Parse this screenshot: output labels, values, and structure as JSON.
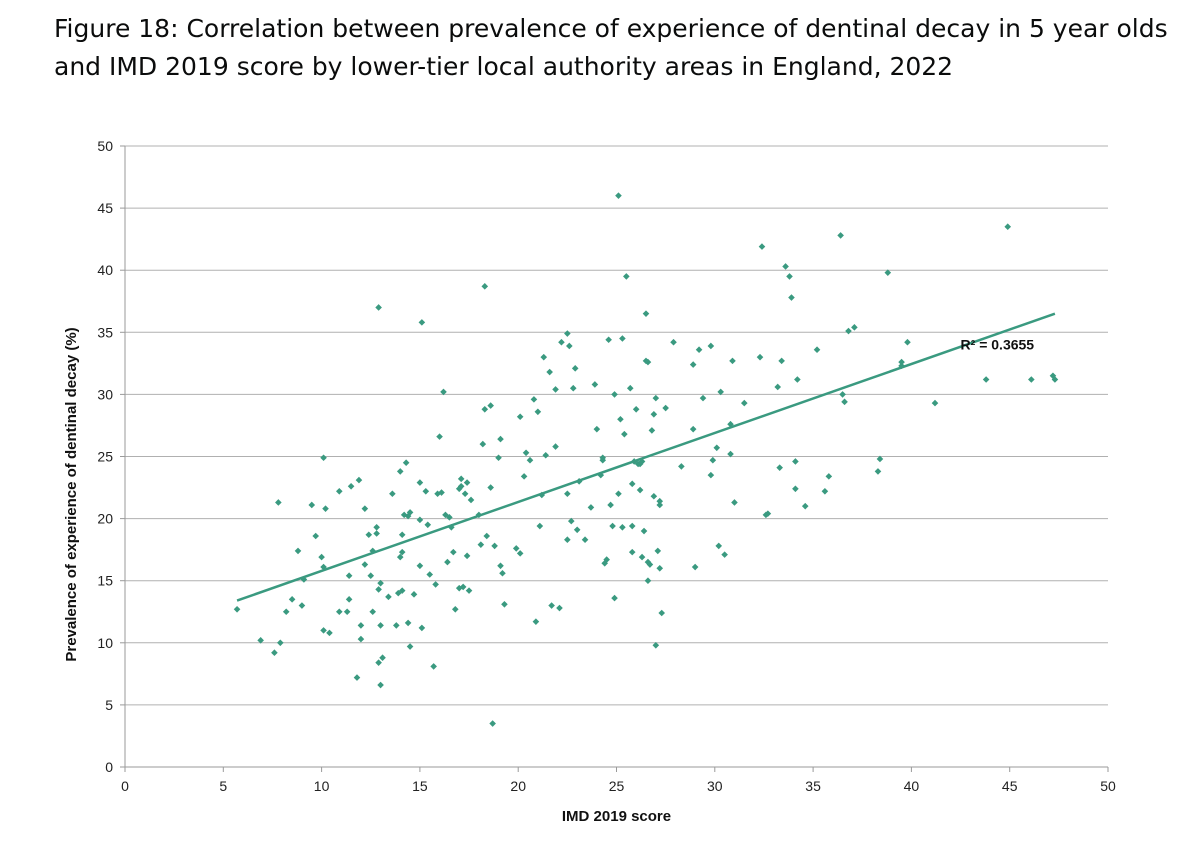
{
  "title": {
    "line1": "Figure 18: Correlation between prevalence of experience of dentinal decay in 5 year olds",
    "line2": "and IMD 2019 score by lower-tier local authority areas in England, 2022"
  },
  "colors": {
    "marker": "#3a9a80",
    "trendline": "#3a9a80",
    "grid": "#b0b0b0",
    "axis": "#9a9a9a",
    "text": "#111111"
  },
  "chart_data": {
    "type": "scatter",
    "title": "Figure 18: Correlation between prevalence of experience of dentinal decay in 5 year olds and IMD 2019 score by lower-tier local authority areas in England, 2022",
    "xlabel": "IMD 2019 score",
    "ylabel": "Prevalence of experience of dentinal decay (%)",
    "xlim": [
      0,
      50
    ],
    "ylim": [
      0,
      50
    ],
    "xticks": [
      0,
      5,
      10,
      15,
      20,
      25,
      30,
      35,
      40,
      45,
      50
    ],
    "yticks": [
      0,
      5,
      10,
      15,
      20,
      25,
      30,
      35,
      40,
      45,
      50
    ],
    "grid": "horizontal",
    "trendline": {
      "type": "linear",
      "x": [
        5.7,
        47.3
      ],
      "y": [
        13.4,
        36.5
      ],
      "label": "R² = 0.3655",
      "label_at": [
        42.5,
        33.6
      ]
    },
    "points": [
      [
        5.7,
        12.7
      ],
      [
        6.9,
        10.2
      ],
      [
        7.6,
        9.2
      ],
      [
        7.8,
        21.3
      ],
      [
        7.9,
        10.0
      ],
      [
        8.2,
        12.5
      ],
      [
        8.5,
        13.5
      ],
      [
        8.8,
        17.4
      ],
      [
        9.0,
        13.0
      ],
      [
        9.1,
        15.1
      ],
      [
        9.5,
        21.1
      ],
      [
        9.7,
        18.6
      ],
      [
        10.0,
        16.9
      ],
      [
        10.1,
        24.9
      ],
      [
        10.1,
        16.1
      ],
      [
        10.2,
        20.8
      ],
      [
        10.1,
        11.0
      ],
      [
        10.4,
        10.8
      ],
      [
        10.9,
        12.5
      ],
      [
        10.9,
        22.2
      ],
      [
        11.3,
        12.5
      ],
      [
        11.4,
        15.4
      ],
      [
        11.4,
        13.5
      ],
      [
        11.5,
        22.6
      ],
      [
        11.8,
        7.2
      ],
      [
        11.9,
        23.1
      ],
      [
        12.0,
        11.4
      ],
      [
        12.0,
        10.3
      ],
      [
        12.2,
        20.8
      ],
      [
        12.2,
        16.3
      ],
      [
        12.4,
        18.7
      ],
      [
        12.5,
        15.4
      ],
      [
        12.6,
        17.4
      ],
      [
        12.6,
        12.5
      ],
      [
        12.8,
        18.8
      ],
      [
        12.8,
        19.3
      ],
      [
        12.9,
        14.3
      ],
      [
        13.0,
        14.8
      ],
      [
        12.9,
        8.4
      ],
      [
        13.0,
        6.6
      ],
      [
        13.0,
        11.4
      ],
      [
        13.1,
        8.8
      ],
      [
        12.9,
        37.0
      ],
      [
        13.4,
        13.7
      ],
      [
        13.6,
        22.0
      ],
      [
        13.8,
        11.4
      ],
      [
        13.9,
        14.0
      ],
      [
        14.0,
        16.9
      ],
      [
        14.0,
        23.8
      ],
      [
        14.1,
        18.7
      ],
      [
        14.1,
        17.3
      ],
      [
        14.1,
        14.2
      ],
      [
        14.2,
        20.3
      ],
      [
        14.3,
        24.5
      ],
      [
        14.4,
        11.6
      ],
      [
        14.4,
        20.2
      ],
      [
        14.5,
        9.7
      ],
      [
        14.5,
        20.5
      ],
      [
        14.7,
        13.9
      ],
      [
        15.0,
        22.9
      ],
      [
        15.0,
        19.9
      ],
      [
        15.0,
        16.2
      ],
      [
        15.1,
        35.8
      ],
      [
        15.1,
        11.2
      ],
      [
        15.3,
        22.2
      ],
      [
        15.4,
        19.5
      ],
      [
        15.5,
        15.5
      ],
      [
        15.7,
        8.1
      ],
      [
        15.8,
        14.7
      ],
      [
        15.9,
        22.0
      ],
      [
        16.0,
        26.6
      ],
      [
        16.1,
        22.1
      ],
      [
        16.2,
        30.2
      ],
      [
        16.3,
        20.3
      ],
      [
        16.4,
        16.5
      ],
      [
        16.5,
        20.1
      ],
      [
        16.6,
        19.3
      ],
      [
        16.7,
        17.3
      ],
      [
        16.8,
        12.7
      ],
      [
        17.0,
        22.4
      ],
      [
        17.0,
        14.4
      ],
      [
        17.1,
        22.6
      ],
      [
        17.1,
        23.2
      ],
      [
        17.2,
        14.5
      ],
      [
        17.3,
        22.0
      ],
      [
        17.4,
        17.0
      ],
      [
        17.4,
        22.9
      ],
      [
        17.5,
        14.2
      ],
      [
        17.6,
        21.5
      ],
      [
        18.0,
        20.3
      ],
      [
        18.1,
        17.9
      ],
      [
        18.2,
        26.0
      ],
      [
        18.3,
        28.8
      ],
      [
        18.3,
        38.7
      ],
      [
        18.4,
        18.6
      ],
      [
        18.6,
        29.1
      ],
      [
        18.6,
        22.5
      ],
      [
        18.7,
        3.5
      ],
      [
        18.8,
        17.8
      ],
      [
        19.0,
        24.9
      ],
      [
        19.1,
        26.4
      ],
      [
        19.1,
        16.2
      ],
      [
        19.2,
        15.6
      ],
      [
        19.3,
        13.1
      ],
      [
        19.9,
        17.6
      ],
      [
        20.1,
        17.2
      ],
      [
        20.1,
        28.2
      ],
      [
        20.3,
        23.4
      ],
      [
        20.4,
        25.3
      ],
      [
        20.6,
        24.7
      ],
      [
        20.8,
        29.6
      ],
      [
        20.9,
        11.7
      ],
      [
        21.0,
        28.6
      ],
      [
        21.1,
        19.4
      ],
      [
        21.2,
        21.9
      ],
      [
        21.3,
        33.0
      ],
      [
        21.4,
        25.1
      ],
      [
        21.6,
        31.8
      ],
      [
        21.7,
        13.0
      ],
      [
        21.9,
        30.4
      ],
      [
        21.9,
        25.8
      ],
      [
        22.1,
        12.8
      ],
      [
        22.2,
        34.2
      ],
      [
        22.5,
        34.9
      ],
      [
        22.5,
        18.3
      ],
      [
        22.5,
        22.0
      ],
      [
        22.6,
        33.9
      ],
      [
        22.7,
        19.8
      ],
      [
        22.8,
        30.5
      ],
      [
        22.9,
        32.1
      ],
      [
        23.0,
        19.1
      ],
      [
        23.1,
        23.0
      ],
      [
        23.4,
        18.3
      ],
      [
        23.7,
        20.9
      ],
      [
        23.9,
        30.8
      ],
      [
        24.0,
        27.2
      ],
      [
        24.2,
        23.5
      ],
      [
        24.3,
        24.7
      ],
      [
        24.3,
        24.9
      ],
      [
        24.4,
        16.4
      ],
      [
        24.5,
        16.7
      ],
      [
        24.6,
        34.4
      ],
      [
        24.7,
        21.1
      ],
      [
        24.8,
        19.4
      ],
      [
        24.9,
        13.6
      ],
      [
        24.9,
        30.0
      ],
      [
        25.1,
        22.0
      ],
      [
        25.2,
        28.0
      ],
      [
        25.1,
        46.0
      ],
      [
        25.3,
        19.3
      ],
      [
        25.3,
        34.5
      ],
      [
        25.4,
        26.8
      ],
      [
        25.5,
        39.5
      ],
      [
        25.7,
        30.5
      ],
      [
        25.8,
        22.8
      ],
      [
        25.8,
        19.4
      ],
      [
        25.8,
        17.3
      ],
      [
        25.9,
        24.6
      ],
      [
        26.0,
        28.8
      ],
      [
        26.1,
        24.4
      ],
      [
        26.2,
        24.4
      ],
      [
        26.2,
        22.3
      ],
      [
        26.3,
        24.6
      ],
      [
        26.3,
        16.9
      ],
      [
        26.4,
        19.0
      ],
      [
        26.5,
        32.7
      ],
      [
        26.5,
        36.5
      ],
      [
        26.6,
        32.6
      ],
      [
        26.6,
        16.5
      ],
      [
        26.6,
        15.0
      ],
      [
        26.7,
        16.3
      ],
      [
        26.8,
        27.1
      ],
      [
        26.9,
        28.4
      ],
      [
        26.9,
        21.8
      ],
      [
        27.0,
        29.7
      ],
      [
        27.0,
        9.8
      ],
      [
        27.1,
        17.4
      ],
      [
        27.2,
        21.4
      ],
      [
        27.2,
        21.1
      ],
      [
        27.2,
        16.0
      ],
      [
        27.3,
        12.4
      ],
      [
        27.5,
        28.9
      ],
      [
        27.9,
        34.2
      ],
      [
        28.3,
        24.2
      ],
      [
        28.9,
        27.2
      ],
      [
        28.9,
        32.4
      ],
      [
        29.0,
        16.1
      ],
      [
        29.2,
        33.6
      ],
      [
        29.4,
        29.7
      ],
      [
        29.8,
        23.5
      ],
      [
        29.8,
        33.9
      ],
      [
        29.9,
        24.7
      ],
      [
        30.1,
        25.7
      ],
      [
        30.2,
        17.8
      ],
      [
        30.3,
        30.2
      ],
      [
        30.5,
        17.1
      ],
      [
        30.8,
        27.6
      ],
      [
        30.8,
        25.2
      ],
      [
        30.9,
        32.7
      ],
      [
        31.0,
        21.3
      ],
      [
        31.5,
        29.3
      ],
      [
        32.3,
        33.0
      ],
      [
        32.4,
        41.9
      ],
      [
        32.6,
        20.3
      ],
      [
        32.7,
        20.4
      ],
      [
        33.2,
        30.6
      ],
      [
        33.3,
        24.1
      ],
      [
        33.4,
        32.7
      ],
      [
        33.6,
        40.3
      ],
      [
        33.8,
        39.5
      ],
      [
        33.9,
        37.8
      ],
      [
        34.1,
        22.4
      ],
      [
        34.1,
        24.6
      ],
      [
        34.2,
        31.2
      ],
      [
        34.6,
        21.0
      ],
      [
        35.2,
        33.6
      ],
      [
        35.6,
        22.2
      ],
      [
        35.8,
        23.4
      ],
      [
        36.4,
        42.8
      ],
      [
        36.5,
        30.0
      ],
      [
        36.6,
        29.4
      ],
      [
        36.8,
        35.1
      ],
      [
        37.1,
        35.4
      ],
      [
        38.3,
        23.8
      ],
      [
        38.4,
        24.8
      ],
      [
        38.8,
        39.8
      ],
      [
        39.5,
        32.6
      ],
      [
        39.5,
        32.3
      ],
      [
        39.8,
        34.2
      ],
      [
        41.2,
        29.3
      ],
      [
        43.8,
        31.2
      ],
      [
        44.9,
        43.5
      ],
      [
        46.1,
        31.2
      ],
      [
        47.2,
        31.5
      ],
      [
        47.3,
        31.2
      ]
    ]
  }
}
